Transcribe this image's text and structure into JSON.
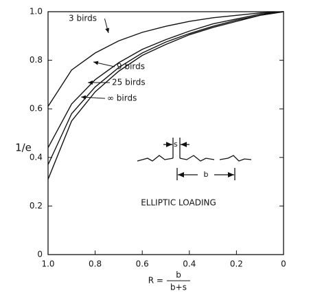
{
  "chart_data": {
    "type": "line",
    "ylabel": "1/e",
    "xlabel": {
      "lhs": "R =",
      "numerator": "b",
      "denominator": "b+s"
    },
    "annotations": [
      "ELLIPTIC LOADING",
      "s",
      "b"
    ],
    "x": [
      1.0,
      0.9,
      0.8,
      0.7,
      0.6,
      0.5,
      0.4,
      0.3,
      0.2,
      0.1,
      0
    ],
    "series": [
      {
        "name": "3 birds",
        "color": "#111111",
        "values": [
          0.61,
          0.76,
          0.83,
          0.88,
          0.915,
          0.94,
          0.96,
          0.975,
          0.985,
          0.995,
          1.0
        ]
      },
      {
        "name": "9 birds",
        "color": "#111111",
        "values": [
          0.44,
          0.62,
          0.72,
          0.79,
          0.845,
          0.885,
          0.92,
          0.95,
          0.97,
          0.99,
          1.0
        ]
      },
      {
        "name": "25 birds",
        "color": "#111111",
        "values": [
          0.37,
          0.58,
          0.69,
          0.77,
          0.83,
          0.875,
          0.91,
          0.94,
          0.965,
          0.985,
          1.0
        ]
      },
      {
        "name": "∞ birds",
        "color": "#111111",
        "values": [
          0.31,
          0.55,
          0.67,
          0.755,
          0.82,
          0.865,
          0.905,
          0.935,
          0.96,
          0.985,
          1.0
        ]
      }
    ],
    "xlim": [
      1.0,
      0
    ],
    "xticks": [
      {
        "value": 1.0,
        "label": "1.0"
      },
      0.8,
      0.6,
      0.4,
      0.2,
      0
    ],
    "ylim": [
      0,
      1.0
    ],
    "yticks": [
      0,
      0.2,
      0.4,
      0.6,
      0.8,
      {
        "value": 1.0,
        "label": "1.0"
      }
    ],
    "grid": false
  }
}
